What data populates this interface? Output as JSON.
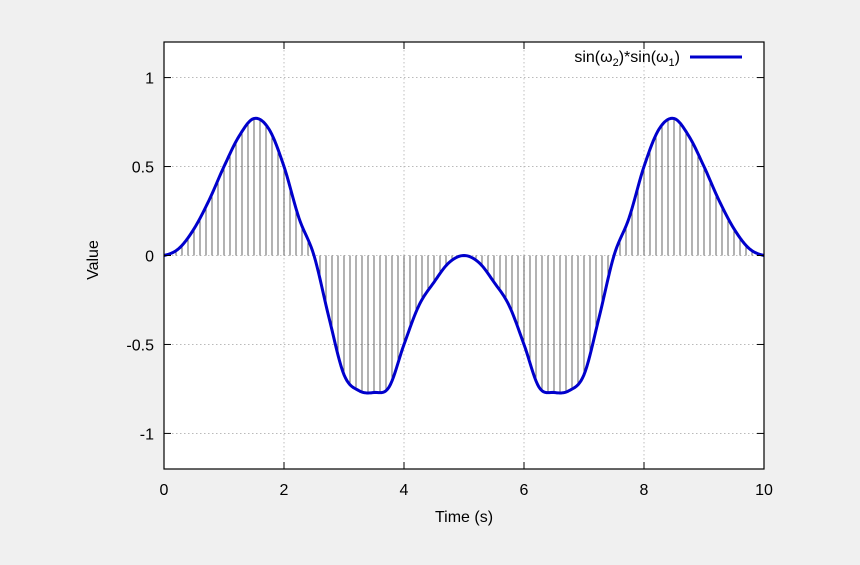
{
  "chart_data": {
    "type": "line",
    "xlabel": "Time (s)",
    "ylabel": "Value",
    "xlim": [
      0,
      10
    ],
    "ylim": [
      -1.2,
      1.2
    ],
    "xticks": [
      0,
      2,
      4,
      6,
      8,
      10
    ],
    "yticks": [
      -1,
      -0.5,
      0,
      0.5,
      1
    ],
    "xtick_labels": [
      "0",
      "2",
      "4",
      "6",
      "8",
      "10"
    ],
    "ytick_labels": [
      "-1",
      "-0.5",
      "0",
      "0.5",
      "1"
    ],
    "grid": true,
    "legend_position": "top-right",
    "series": [
      {
        "name": "sin(ω2)*sin(ω1)",
        "name_parts": {
          "a": "sin(ω",
          "b": "2",
          "c": ")*sin(ω",
          "d": "1",
          "e": ")"
        },
        "color": "#0000cc",
        "style": "line",
        "x": [
          0,
          0.25,
          0.5,
          0.75,
          1,
          1.25,
          1.5,
          1.75,
          2,
          2.25,
          2.5,
          2.75,
          3,
          3.25,
          3.5,
          3.75,
          4,
          4.25,
          4.5,
          4.75,
          5,
          5.25,
          5.5,
          5.75,
          6,
          6.25,
          6.5,
          6.75,
          7,
          7.25,
          7.5,
          7.75,
          8,
          8.25,
          8.5,
          8.75,
          9,
          9.25,
          9.5,
          9.75,
          10
        ],
        "y": [
          0,
          0.04,
          0.15,
          0.31,
          0.5,
          0.67,
          0.77,
          0.71,
          0.5,
          0.21,
          0,
          -0.35,
          -0.67,
          -0.76,
          -0.77,
          -0.74,
          -0.5,
          -0.28,
          -0.15,
          -0.04,
          0,
          -0.04,
          -0.15,
          -0.28,
          -0.5,
          -0.74,
          -0.77,
          -0.76,
          -0.67,
          -0.35,
          0,
          0.21,
          0.5,
          0.71,
          0.77,
          0.67,
          0.5,
          0.31,
          0.15,
          0.04,
          0
        ]
      }
    ],
    "impulse_color": "#000000"
  }
}
